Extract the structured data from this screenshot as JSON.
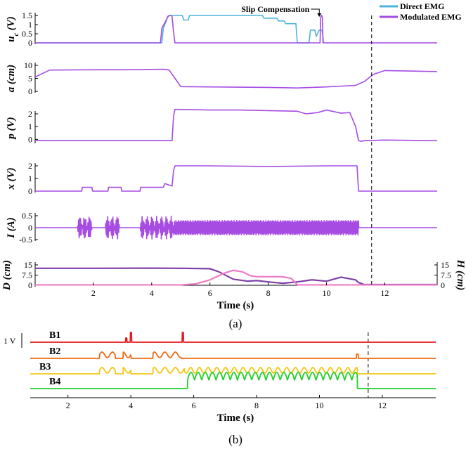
{
  "chart_data": [
    {
      "type": "line",
      "panel": "a-uc",
      "ylabel": "u_c (V)",
      "ylabel_main": "u",
      "ylabel_sub": "c",
      "ylabel_unit": " (V)",
      "ylim": [
        0,
        1.5
      ],
      "yticks": [
        "0",
        "0.5",
        "1",
        "1.5"
      ],
      "legend": {
        "position": "top-right",
        "entries": [
          "Direct EMG",
          "Modulated EMG"
        ]
      },
      "annotation": {
        "text": "Slip Compensation",
        "x": 9.85
      },
      "series": [
        {
          "name": "Direct EMG",
          "color": "#4bb4dc",
          "x": [
            0,
            4.35,
            4.4,
            4.5,
            4.55,
            4.6,
            5.05,
            5.1,
            5.25,
            5.3,
            7.8,
            7.85,
            8.3,
            8.35,
            8.55,
            8.6,
            8.95,
            9.0,
            9.4,
            9.45,
            9.6,
            9.65,
            9.75,
            9.85,
            9.9
          ],
          "y": [
            0,
            0,
            0.8,
            1.2,
            1.45,
            1.5,
            1.5,
            1.25,
            1.25,
            1.5,
            1.5,
            1.35,
            1.35,
            1.2,
            1.2,
            1.05,
            1.05,
            0,
            0,
            0.7,
            0.7,
            0.35,
            0.7,
            0.7,
            0
          ]
        },
        {
          "name": "Modulated EMG",
          "color": "#a64ce3",
          "x": [
            0,
            4.3,
            4.35,
            4.45,
            4.55,
            4.6,
            4.65,
            4.7,
            4.75,
            4.8,
            9.78,
            9.8,
            9.83,
            9.86,
            9.88,
            13.8
          ],
          "y": [
            0,
            0,
            0.8,
            1.1,
            1.4,
            1.5,
            1.5,
            1.45,
            0.6,
            0,
            0,
            1.4,
            1.5,
            1.4,
            0,
            0
          ]
        }
      ]
    },
    {
      "type": "line",
      "panel": "a-a",
      "ylabel": "a (cm)",
      "ylim": [
        0,
        10
      ],
      "yticks": [
        "0",
        "5",
        "10"
      ],
      "series": [
        {
          "color": "#a64ce3",
          "x": [
            0,
            0.5,
            2,
            3,
            4.4,
            4.6,
            4.8,
            5,
            6,
            8,
            9,
            10,
            11,
            11.3,
            11.6,
            12,
            13,
            13.8
          ],
          "y": [
            5.5,
            8.2,
            8.3,
            8.3,
            8.5,
            8.2,
            5,
            1.8,
            1.7,
            1.5,
            1.3,
            1.7,
            2.3,
            3.8,
            6.5,
            8,
            7.8,
            7.6
          ]
        }
      ]
    },
    {
      "type": "line",
      "panel": "a-p",
      "ylabel": "p (V)",
      "ylim": [
        0,
        2
      ],
      "yticks": [
        "0",
        "1",
        "2"
      ],
      "series": [
        {
          "color": "#a64ce3",
          "x": [
            0,
            4.5,
            4.7,
            4.75,
            4.8,
            6,
            7,
            8,
            9,
            9.3,
            9.7,
            10,
            10.5,
            10.8,
            11,
            11.1,
            11.2,
            11.3,
            12,
            13.8
          ],
          "y": [
            -0.1,
            -0.1,
            -0.1,
            1.8,
            2.35,
            2.3,
            2.3,
            2.25,
            2.2,
            2.0,
            2.1,
            2.3,
            2.05,
            2.1,
            1.0,
            -0.1,
            -0.15,
            -0.1,
            -0.05,
            -0.1
          ]
        }
      ]
    },
    {
      "type": "line",
      "panel": "a-x",
      "ylabel": "x (V)",
      "ylim": [
        0,
        2
      ],
      "yticks": [
        "0",
        "1",
        "2"
      ],
      "series": [
        {
          "color": "#a64ce3",
          "x": [
            0,
            1.6,
            1.62,
            1.95,
            1.97,
            2.5,
            2.52,
            2.95,
            2.97,
            3.6,
            3.62,
            4.4,
            4.45,
            4.7,
            4.75,
            4.8,
            6,
            8,
            10,
            11.05,
            11.1,
            13.8
          ],
          "y": [
            0,
            0,
            0.3,
            0.3,
            0,
            0,
            0.3,
            0.3,
            0,
            0,
            0.3,
            0.3,
            0.6,
            0.4,
            1.6,
            2.0,
            2.0,
            1.95,
            2.0,
            2.0,
            0,
            0
          ]
        }
      ]
    },
    {
      "type": "line",
      "panel": "a-I",
      "ylabel": "I (A)",
      "ylim": [
        -0.5,
        0.5
      ],
      "yticks": [
        "0.5",
        "0",
        "-0.5"
      ],
      "series": [
        {
          "color": "#a64ce3",
          "note": "oscillating stimulation current bursts",
          "bursts": [
            {
              "start": 1.45,
              "end": 1.95,
              "amp": 0.48,
              "freq": 18
            },
            {
              "start": 2.4,
              "end": 2.9,
              "amp": 0.48,
              "freq": 18
            },
            {
              "start": 3.6,
              "end": 4.75,
              "amp": 0.48,
              "freq": 18
            },
            {
              "start": 4.75,
              "end": 11.1,
              "amp": 0.3,
              "freq": 5.5
            }
          ]
        }
      ]
    },
    {
      "type": "line",
      "panel": "a-DH",
      "ylabel": "D (cm)",
      "ylabel_right": "H (cm)",
      "xlabel": "Time (s)",
      "xlim": [
        0,
        13.8
      ],
      "xticks": [
        2,
        4,
        6,
        8,
        10,
        12
      ],
      "yticks": [
        "0",
        "7.5",
        "15"
      ],
      "yticks_right": [
        "0",
        "7.5",
        "15"
      ],
      "ylim": [
        0,
        15
      ],
      "series": [
        {
          "name": "D",
          "color": "#7d3fa8",
          "x": [
            0,
            2,
            4,
            5,
            6,
            6.3,
            6.8,
            7.3,
            7.6,
            8,
            8.5,
            9,
            9.5,
            10,
            10.5,
            11,
            11.1,
            11.3,
            13.8
          ],
          "y": [
            12.5,
            12.5,
            12.6,
            12.5,
            12.2,
            10,
            4.5,
            3,
            3.5,
            2.5,
            1.5,
            2.5,
            4,
            3,
            6,
            4,
            2,
            0.5,
            0.5
          ]
        },
        {
          "name": "H",
          "color": "#f07ac8",
          "x": [
            0,
            5,
            5.5,
            6,
            6.5,
            6.8,
            7.1,
            7.4,
            7.6,
            7.9,
            8.5,
            8.8,
            9,
            10,
            11,
            11.5,
            13.8
          ],
          "y": [
            0.3,
            0.3,
            1,
            4,
            9,
            11,
            10,
            7,
            6.3,
            6.3,
            6.3,
            5,
            0.3,
            0.3,
            0.3,
            0.3,
            0.3
          ]
        }
      ]
    },
    {
      "type": "line",
      "panel": "b",
      "xlabel": "Time (s)",
      "xlim": [
        0.8,
        13.7
      ],
      "xticks": [
        2,
        4,
        6,
        8,
        10,
        12
      ],
      "scale_label": "1 V",
      "series": [
        {
          "name": "B1",
          "color": "#e8181c",
          "events": [
            3.85,
            4.0,
            5.65
          ]
        },
        {
          "name": "B2",
          "color": "#f06a14",
          "active": [
            [
              3.0,
              5.8
            ]
          ]
        },
        {
          "name": "B3",
          "color": "#f5c612",
          "active": [
            [
              3.0,
              5.7
            ],
            [
              5.7,
              11.2
            ]
          ]
        },
        {
          "name": "B4",
          "color": "#23d12a",
          "high": [
            5.8,
            11.2
          ]
        }
      ]
    }
  ],
  "dashed_line_time": 11.55,
  "labels": {
    "sub_a": "(a)",
    "sub_b": "(b)"
  }
}
